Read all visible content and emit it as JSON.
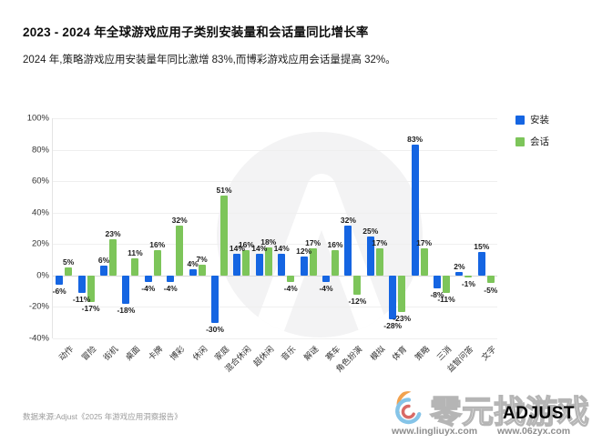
{
  "header": {
    "title": "2023 - 2024 年全球游戏应用子类别安装量和会话量同比增长率",
    "subtitle": "2024 年,策略游戏应用安装量年同比激增 83%,而博彩游戏应用会话量提高 32%。"
  },
  "chart_data": {
    "type": "bar",
    "title": "2023 - 2024 年全球游戏应用子类别安装量和会话量同比增长率",
    "categories": [
      "动作",
      "冒险",
      "街机",
      "桌面",
      "卡牌",
      "博彩",
      "休闲",
      "家庭",
      "混合休闲",
      "超休闲",
      "音乐",
      "解谜",
      "赛车",
      "角色扮演",
      "模拟",
      "体育",
      "策略",
      "三消",
      "益智问答",
      "文字"
    ],
    "series": [
      {
        "name": "安装",
        "color": "#1565e2",
        "values": [
          -6,
          -11,
          6,
          -18,
          -4,
          -4,
          4,
          -30,
          14,
          14,
          14,
          12,
          -4,
          32,
          25,
          -28,
          83,
          -8,
          2,
          15
        ]
      },
      {
        "name": "会话",
        "color": "#7dc55a",
        "values": [
          5,
          -17,
          23,
          11,
          16,
          32,
          7,
          51,
          16,
          18,
          -4,
          17,
          16,
          -12,
          17,
          -23,
          17,
          -11,
          -1,
          -5
        ]
      }
    ],
    "xlabel": "",
    "ylabel": "",
    "ylim": [
      -40,
      100
    ],
    "yticks": [
      100,
      80,
      60,
      40,
      20,
      0,
      -20,
      -40
    ],
    "value_suffix": "%",
    "grid": "horizontal",
    "legend_position": "top-right"
  },
  "footer": {
    "source": "数据来源:Adjust《2025 年游戏应用洞察报告》"
  },
  "watermark": {
    "brand_cn": "零元找游戏",
    "brand_logo": "ADJUST",
    "url_left": "www.lingliuyx.com",
    "url_right": "www.06zyx.com"
  }
}
